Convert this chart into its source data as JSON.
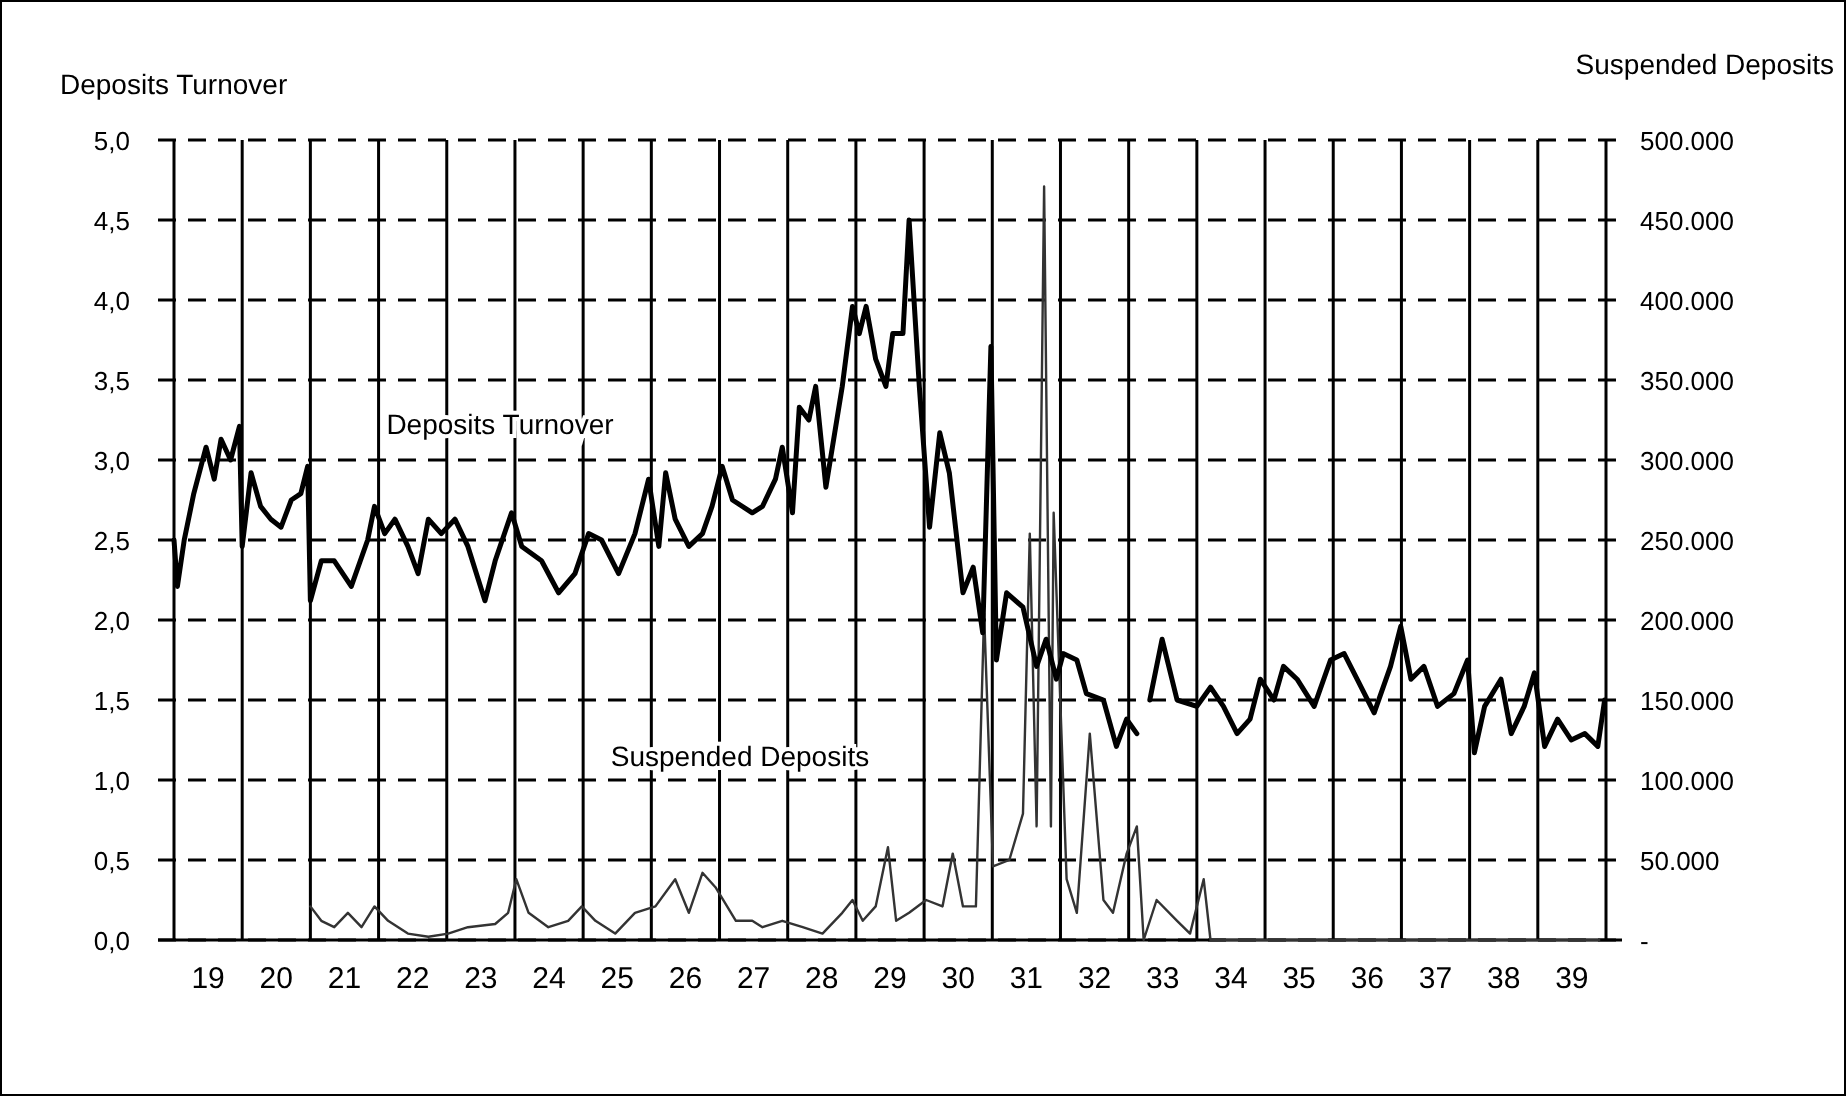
{
  "chart_data": {
    "type": "line",
    "ylabel": "Deposits Turnover",
    "y2label": "Suspended Deposits",
    "grid": true,
    "line_style": "solid",
    "xlim": [
      19,
      40
    ],
    "xticks": [
      {
        "value": 19,
        "label": null
      },
      {
        "value": 19.5,
        "label": "19"
      },
      {
        "value": 20,
        "label": null
      },
      {
        "value": 20.5,
        "label": "20"
      },
      {
        "value": 21,
        "label": null
      },
      {
        "value": 21.5,
        "label": "21"
      },
      {
        "value": 22,
        "label": null
      },
      {
        "value": 22.5,
        "label": "22"
      },
      {
        "value": 23,
        "label": null
      },
      {
        "value": 23.5,
        "label": "23"
      },
      {
        "value": 24,
        "label": null
      },
      {
        "value": 24.5,
        "label": "24"
      },
      {
        "value": 25,
        "label": null
      },
      {
        "value": 25.5,
        "label": "25"
      },
      {
        "value": 26,
        "label": null
      },
      {
        "value": 26.5,
        "label": "26"
      },
      {
        "value": 27,
        "label": null
      },
      {
        "value": 27.5,
        "label": "27"
      },
      {
        "value": 28,
        "label": null
      },
      {
        "value": 28.5,
        "label": "28"
      },
      {
        "value": 29,
        "label": null
      },
      {
        "value": 29.5,
        "label": "29"
      },
      {
        "value": 30,
        "label": null
      },
      {
        "value": 30.5,
        "label": "30"
      },
      {
        "value": 31,
        "label": null
      },
      {
        "value": 31.5,
        "label": "31"
      },
      {
        "value": 32,
        "label": null
      },
      {
        "value": 32.5,
        "label": "32"
      },
      {
        "value": 33,
        "label": null
      },
      {
        "value": 33.5,
        "label": "33"
      },
      {
        "value": 34,
        "label": null
      },
      {
        "value": 34.5,
        "label": "34"
      },
      {
        "value": 35,
        "label": null
      },
      {
        "value": 35.5,
        "label": "35"
      },
      {
        "value": 36,
        "label": null
      },
      {
        "value": 36.5,
        "label": "36"
      },
      {
        "value": 37,
        "label": null
      },
      {
        "value": 37.5,
        "label": "37"
      },
      {
        "value": 38,
        "label": null
      },
      {
        "value": 38.5,
        "label": "38"
      },
      {
        "value": 39,
        "label": null
      },
      {
        "value": 39.5,
        "label": "39"
      },
      {
        "value": 40,
        "label": null
      }
    ],
    "ylim": [
      0,
      5
    ],
    "yticks": [
      {
        "value": 0,
        "label": "0,0"
      },
      {
        "value": 0.5,
        "label": "0,5"
      },
      {
        "value": 1,
        "label": "1,0"
      },
      {
        "value": 1.5,
        "label": "1,5"
      },
      {
        "value": 2,
        "label": "2,0"
      },
      {
        "value": 2.5,
        "label": "2,5"
      },
      {
        "value": 3,
        "label": "3,0"
      },
      {
        "value": 3.5,
        "label": "3,5"
      },
      {
        "value": 4,
        "label": "4,0"
      },
      {
        "value": 4.5,
        "label": "4,5"
      },
      {
        "value": 5,
        "label": "5,0"
      }
    ],
    "y2lim": [
      0,
      500000
    ],
    "y2ticks": [
      {
        "value": 0,
        "label": "-"
      },
      {
        "value": 50000,
        "label": "50.000"
      },
      {
        "value": 100000,
        "label": "100.000"
      },
      {
        "value": 150000,
        "label": "150.000"
      },
      {
        "value": 200000,
        "label": "200.000"
      },
      {
        "value": 250000,
        "label": "250.000"
      },
      {
        "value": 300000,
        "label": "300.000"
      },
      {
        "value": 350000,
        "label": "350.000"
      },
      {
        "value": 400000,
        "label": "400.000"
      },
      {
        "value": 450000,
        "label": "450.000"
      },
      {
        "value": 500000,
        "label": "500.000"
      }
    ],
    "series": [
      {
        "name": "Deposits Turnover",
        "color": "#000000",
        "x": [
          19.0,
          19.05,
          19.15,
          19.29,
          19.47,
          19.59,
          19.69,
          19.83,
          19.96,
          20.0,
          20.13,
          20.27,
          20.42,
          20.57,
          20.72,
          20.86,
          20.96,
          21.0,
          21.16,
          21.35,
          21.6,
          21.84,
          21.94,
          22.09,
          22.24,
          22.43,
          22.58,
          22.73,
          22.92,
          23.12,
          23.31,
          23.56,
          23.71,
          23.95,
          24.1,
          24.39,
          24.64,
          24.88,
          25.08,
          25.27,
          25.52,
          25.76,
          25.96,
          26.11,
          26.21,
          26.35,
          26.55,
          26.75,
          26.89,
          27.04,
          27.19,
          27.48,
          27.63,
          27.82,
          27.92,
          28.07,
          28.17,
          28.31,
          28.41,
          28.56,
          28.8,
          28.95,
          29.05,
          29.15,
          29.29,
          29.44,
          29.54,
          29.69,
          29.78,
          29.93,
          30.08,
          30.23,
          30.37,
          30.57,
          30.72,
          30.86,
          30.98,
          31.06,
          31.21,
          31.45,
          31.65,
          31.79,
          31.94,
          32.04,
          32.24,
          32.38,
          32.63,
          32.82,
          32.97,
          33.12,
          33.2,
          33.31,
          33.49,
          33.71,
          34.0,
          34.2,
          34.39,
          34.59,
          34.78,
          34.93,
          35.13,
          35.27,
          35.47,
          35.72,
          35.96,
          36.16,
          36.35,
          36.6,
          36.84,
          36.99,
          37.14,
          37.33,
          37.53,
          37.77,
          37.97,
          38.07,
          38.22,
          38.46,
          38.61,
          38.8,
          38.95,
          39.1,
          39.29,
          39.49,
          39.69,
          39.88,
          39.98
        ],
        "values": [
          2.5,
          2.21,
          2.5,
          2.79,
          3.08,
          2.88,
          3.13,
          3.0,
          3.21,
          2.46,
          2.92,
          2.71,
          2.63,
          2.58,
          2.75,
          2.79,
          2.96,
          2.12,
          2.37,
          2.37,
          2.21,
          2.5,
          2.71,
          2.54,
          2.63,
          2.46,
          2.29,
          2.63,
          2.54,
          2.63,
          2.46,
          2.12,
          2.37,
          2.67,
          2.46,
          2.37,
          2.17,
          2.29,
          2.54,
          2.5,
          2.29,
          2.54,
          2.88,
          2.46,
          2.92,
          2.63,
          2.46,
          2.54,
          2.71,
          2.96,
          2.75,
          2.67,
          2.71,
          2.88,
          3.08,
          2.67,
          3.33,
          3.25,
          3.46,
          2.83,
          3.46,
          3.96,
          3.79,
          3.96,
          3.63,
          3.46,
          3.79,
          3.79,
          4.5,
          3.46,
          2.58,
          3.17,
          2.92,
          2.17,
          2.33,
          1.92,
          3.71,
          1.75,
          2.17,
          2.08,
          1.71,
          1.88,
          1.63,
          1.79,
          1.75,
          1.54,
          1.5,
          1.21,
          1.38,
          1.29,
          null,
          1.5,
          1.88,
          1.5,
          1.46,
          1.58,
          1.46,
          1.29,
          1.38,
          1.63,
          1.5,
          1.71,
          1.63,
          1.46,
          1.75,
          1.79,
          1.63,
          1.42,
          1.71,
          1.96,
          1.63,
          1.71,
          1.46,
          1.54,
          1.75,
          1.17,
          1.46,
          1.63,
          1.29,
          1.46,
          1.67,
          1.21,
          1.38,
          1.25,
          1.29,
          1.21,
          1.5
        ]
      },
      {
        "name": "Suspended Deposits",
        "color": "#333333",
        "axis": "y2",
        "x": [
          21.0,
          21.16,
          21.35,
          21.55,
          21.75,
          21.94,
          22.14,
          22.43,
          22.73,
          23.02,
          23.31,
          23.71,
          23.9,
          24.02,
          24.2,
          24.49,
          24.78,
          24.98,
          25.18,
          25.47,
          25.76,
          26.06,
          26.35,
          26.55,
          26.75,
          26.94,
          27.24,
          27.48,
          27.63,
          27.92,
          28.22,
          28.51,
          28.8,
          28.95,
          29.1,
          29.29,
          29.47,
          29.59,
          29.78,
          30.03,
          30.27,
          30.42,
          30.57,
          30.76,
          30.88,
          31.01,
          31.25,
          31.45,
          31.55,
          31.65,
          31.76,
          31.86,
          31.9,
          32.09,
          32.24,
          32.43,
          32.63,
          32.77,
          32.97,
          33.12,
          33.22,
          33.41,
          33.71,
          33.9,
          34.1,
          34.2,
          35.0,
          36.0,
          37.0,
          38.0,
          39.0,
          39.9
        ],
        "values": [
          21000,
          12000,
          8000,
          17000,
          8000,
          21000,
          12000,
          4000,
          2000,
          4000,
          8000,
          10000,
          17000,
          38000,
          17000,
          8000,
          12000,
          21000,
          12000,
          4000,
          17000,
          21000,
          38000,
          17000,
          42000,
          33000,
          12000,
          12000,
          8000,
          12000,
          8000,
          4000,
          17000,
          25000,
          12000,
          21000,
          58000,
          12000,
          17000,
          25000,
          21000,
          54000,
          21000,
          21000,
          204000,
          46000,
          50000,
          79000,
          254000,
          71000,
          471000,
          71000,
          267000,
          38000,
          17000,
          129000,
          25000,
          17000,
          54000,
          71000,
          0,
          25000,
          12000,
          4000,
          38000,
          0,
          0,
          0,
          0,
          0,
          0,
          0
        ]
      }
    ]
  }
}
